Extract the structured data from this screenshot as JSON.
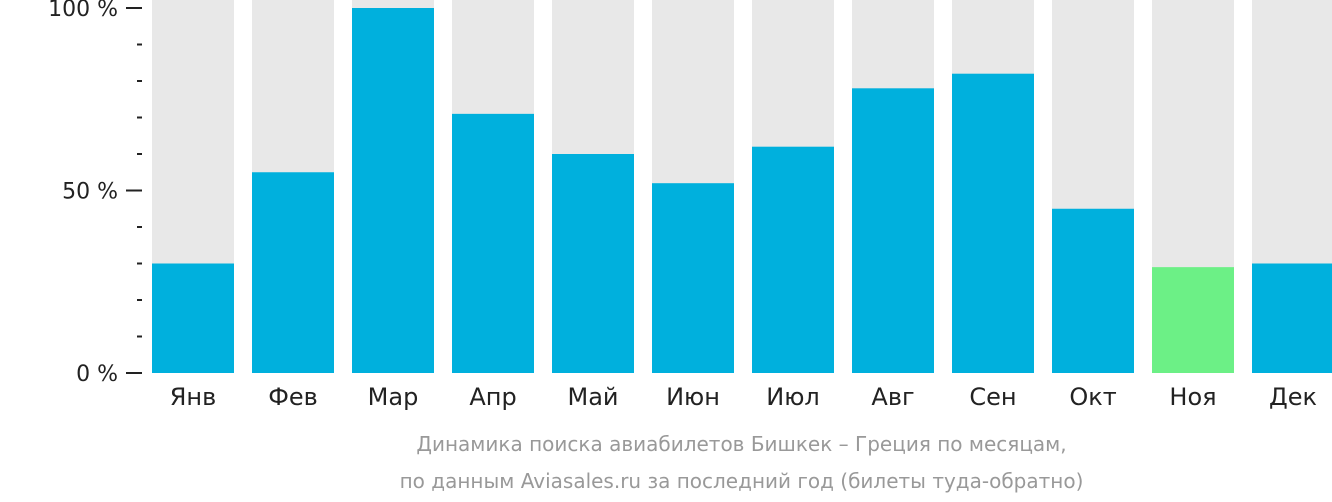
{
  "colors": {
    "bar": "#00b0dd",
    "highlight": "#6cf086",
    "track": "#e8e8e8",
    "axis": "#222222"
  },
  "caption": {
    "line1": "Динамика поиска авиабилетов Бишкек – Греция по месяцам,",
    "line2": "по данным Aviasales.ru за последний год (билеты туда-обратно)"
  },
  "chart_data": {
    "type": "bar",
    "categories": [
      "Янв",
      "Фев",
      "Мар",
      "Апр",
      "Май",
      "Июн",
      "Июл",
      "Авг",
      "Сен",
      "Окт",
      "Ноя",
      "Дек"
    ],
    "values": [
      30,
      55,
      100,
      71,
      60,
      52,
      62,
      78,
      82,
      45,
      29,
      30
    ],
    "highlight_category": "Ноя",
    "ylim": [
      0,
      100
    ],
    "y_ticks": [
      {
        "value": 0,
        "label": "0 %"
      },
      {
        "value": 50,
        "label": "50 %"
      },
      {
        "value": 100,
        "label": "100 %"
      }
    ],
    "y_minor_tick_step": 10,
    "title": "",
    "xlabel": "",
    "ylabel": "",
    "grid": false,
    "legend": "none"
  }
}
